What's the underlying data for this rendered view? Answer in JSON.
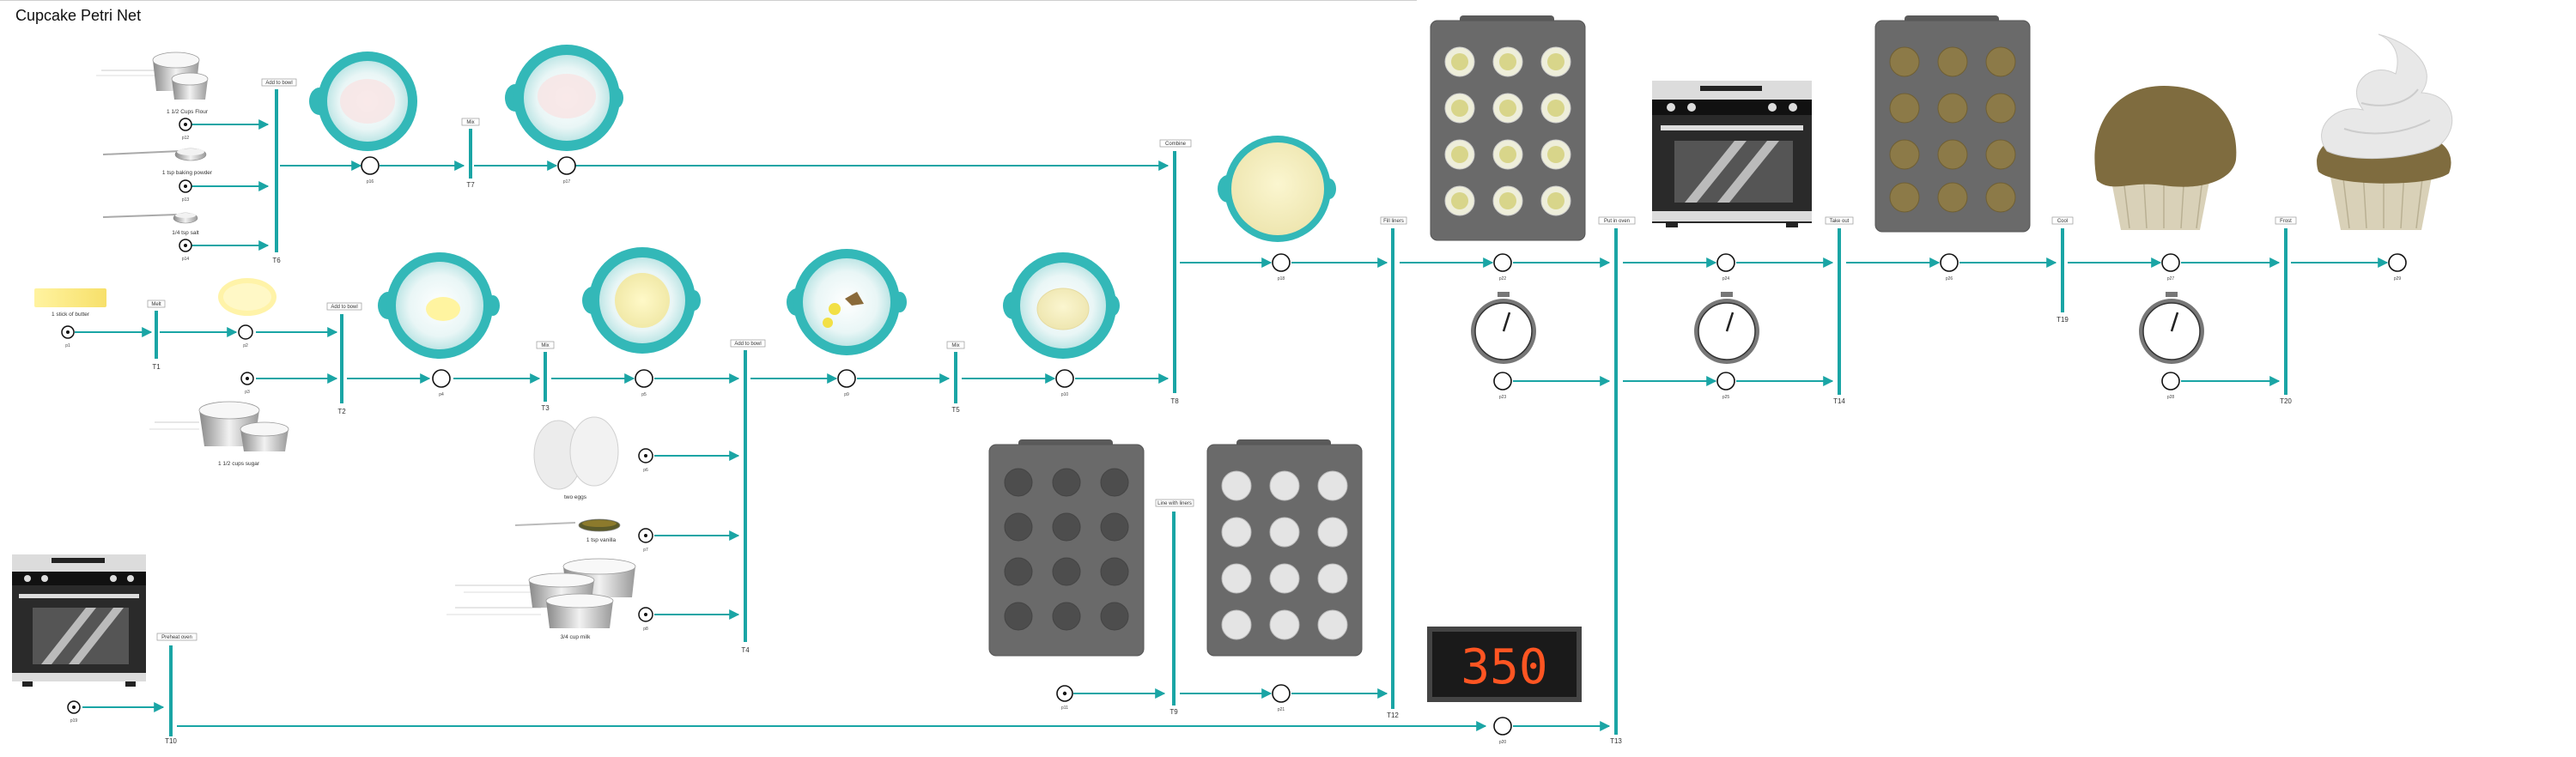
{
  "title": "Cupcake Petri Net",
  "colors": {
    "arc": "#1aa5a5",
    "bowl": "#33b8b8",
    "tray": "#6a6a6a",
    "tray_cell": "#4a4a4a",
    "oven": "#2a2a2a",
    "display_digits": "#ff5522",
    "cupcake_top": "#7f6c3f",
    "cupcake_wrapper": "#d9d1b8",
    "frosting": "#e8e8e8"
  },
  "ingredients": {
    "flour": "1 1/2 Cups Flour",
    "baking_powder": "1 tsp baking powder",
    "salt": "1/4 tsp salt",
    "butter": "1 stick of butter",
    "sugar": "1 1/2 cups sugar",
    "eggs": "two eggs",
    "vanilla": "1 tsp vanilla",
    "milk": "3/4 cup milk"
  },
  "transitions": {
    "t1": {
      "name": "T1",
      "label": "Melt"
    },
    "t2": {
      "name": "T2",
      "label": "Add to bowl"
    },
    "t3": {
      "name": "T3",
      "label": "Mix"
    },
    "t4": {
      "name": "T4",
      "label": "Add to bowl"
    },
    "t5": {
      "name": "T5",
      "label": "Mix"
    },
    "t6": {
      "name": "T6",
      "label": "Add to bowl"
    },
    "t7": {
      "name": "T7",
      "label": "Mix"
    },
    "t8": {
      "name": "T8",
      "label": "Combine"
    },
    "t9": {
      "name": "T9",
      "label": "Line with liners"
    },
    "t10": {
      "name": "T10",
      "label": "Preheat oven"
    },
    "t12": {
      "name": "T12",
      "label": "Fill liners"
    },
    "t13": {
      "name": "T13",
      "label": "Put in oven"
    },
    "t14": {
      "name": "T14",
      "label": "Take out"
    },
    "t19": {
      "name": "T19",
      "label": "Cool"
    },
    "t20": {
      "name": "T20",
      "label": "Frost"
    }
  },
  "places": {
    "p_flour": "p12",
    "p_bp": "p13",
    "p_salt": "p14",
    "p_dry1": "p16",
    "p_dry2": "p17",
    "p_butter": "p1",
    "p_melted": "p2",
    "p_sugar": "p3",
    "p_mix1": "p4",
    "p_mix2": "p5",
    "p_eggs": "p6",
    "p_vanilla": "p7",
    "p_milk": "p8",
    "p_wet1": "p9",
    "p_wet2": "p10",
    "p_batter": "p18",
    "p_oven": "p19",
    "p_hot": "p20",
    "p_tray": "p11",
    "p_lined": "p21",
    "p_filled": "p22",
    "p_timer1": "p23",
    "p_inoven": "p24",
    "p_timer2": "p25",
    "p_baked": "p26",
    "p_cool": "p27",
    "p_timer3": "p28",
    "p_done": "p29"
  },
  "oven_display": "350"
}
